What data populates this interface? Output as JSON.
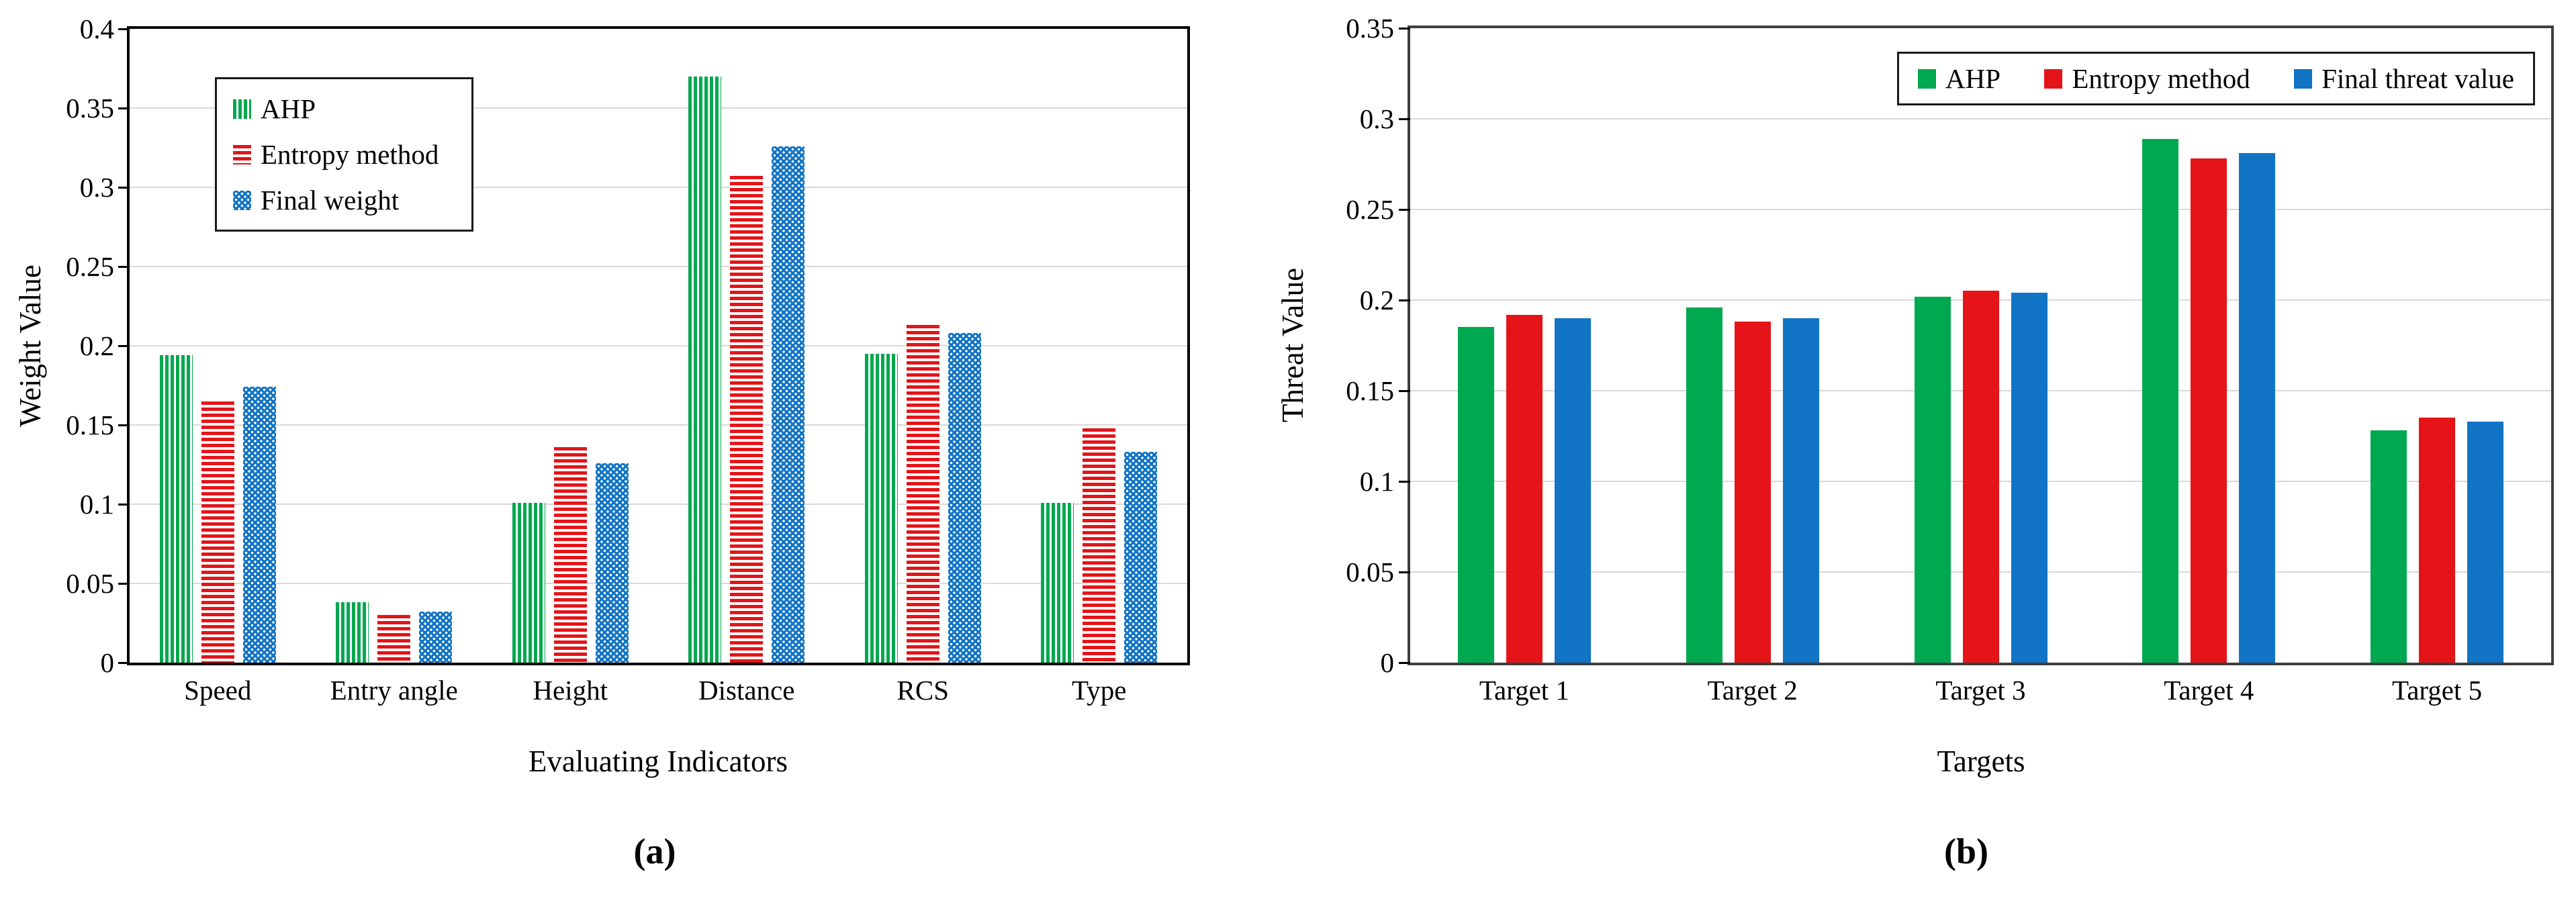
{
  "figure": {
    "caption_a": "(a)",
    "caption_b": "(b)"
  },
  "colors": {
    "ahp_green": "#00a84f",
    "entropy_red": "#e41418",
    "final_blue": "#1174c4",
    "gridline": "#d9d9d9",
    "frame_a": "#000000",
    "frame_b": "#3f3f3f"
  },
  "chart_data": [
    {
      "type": "bar",
      "panel": "a",
      "title": "",
      "xlabel": "Evaluating Indicators",
      "ylabel": "Weight Value",
      "categories": [
        "Speed",
        "Entry angle",
        "Height",
        "Distance",
        "RCS",
        "Type"
      ],
      "series": [
        {
          "name": "AHP",
          "color": "#00a84f",
          "pattern": "vertical-stripes",
          "values": [
            0.194,
            0.038,
            0.101,
            0.37,
            0.195,
            0.101
          ]
        },
        {
          "name": "Entropy method",
          "color": "#e41418",
          "pattern": "horizontal-stripes",
          "values": [
            0.165,
            0.03,
            0.136,
            0.307,
            0.213,
            0.148
          ]
        },
        {
          "name": "Final weight",
          "color": "#1174c4",
          "pattern": "dots",
          "values": [
            0.174,
            0.032,
            0.126,
            0.326,
            0.208,
            0.133
          ]
        }
      ],
      "ylim": [
        0,
        0.4
      ],
      "ytick_step": 0.05,
      "ytick_labels": [
        "0",
        "0.05",
        "0.1",
        "0.15",
        "0.2",
        "0.25",
        "0.3",
        "0.35",
        "0.4"
      ],
      "grid": true,
      "legend_position": "upper-left-vertical"
    },
    {
      "type": "bar",
      "panel": "b",
      "title": "",
      "xlabel": "Targets",
      "ylabel": "Threat Value",
      "categories": [
        "Target 1",
        "Target 2",
        "Target 3",
        "Target 4",
        "Target 5"
      ],
      "series": [
        {
          "name": "AHP",
          "color": "#00a84f",
          "pattern": "solid",
          "values": [
            0.185,
            0.196,
            0.202,
            0.289,
            0.128
          ]
        },
        {
          "name": "Entropy method",
          "color": "#e41418",
          "pattern": "solid",
          "values": [
            0.192,
            0.188,
            0.205,
            0.278,
            0.135
          ]
        },
        {
          "name": "Final threat value",
          "color": "#1174c4",
          "pattern": "solid",
          "values": [
            0.19,
            0.19,
            0.204,
            0.281,
            0.133
          ]
        }
      ],
      "ylim": [
        0,
        0.35
      ],
      "ytick_step": 0.05,
      "ytick_labels": [
        "0",
        "0.05",
        "0.1",
        "0.15",
        "0.2",
        "0.25",
        "0.3",
        "0.35"
      ],
      "grid": true,
      "legend_position": "upper-right-horizontal"
    }
  ]
}
